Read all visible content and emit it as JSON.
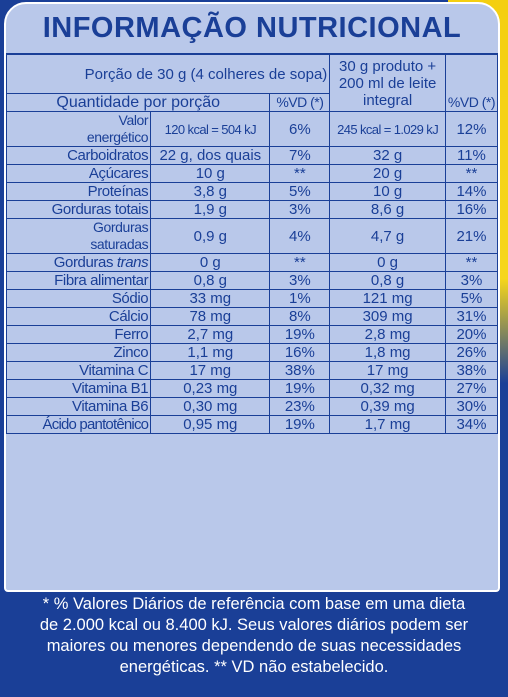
{
  "title": "INFORMAÇÃO NUTRICIONAL",
  "header": {
    "portion": "Porção de 30 g (4 colheres de sopa)",
    "product_line1": "30 g produto +",
    "product_line2": "200 ml de leite",
    "product_line3": "integral",
    "qty_label": "Quantidade por porção",
    "vd1": "%VD (*)",
    "vd2": "%VD (*)"
  },
  "rows": [
    {
      "name_l1": "Valor",
      "name_l2": "energético",
      "q1": "120 kcal = 504 kJ",
      "v1": "6%",
      "q2": "245 kcal = 1.029 kJ",
      "v2": "12%"
    },
    {
      "name": "Carboidratos",
      "q1": "22 g, dos quais",
      "v1": "7%",
      "q2": "32 g",
      "v2": "11%"
    },
    {
      "name": "Açúcares",
      "q1": "10 g",
      "v1": "**",
      "q2": "20 g",
      "v2": "**"
    },
    {
      "name": "Proteínas",
      "q1": "3,8 g",
      "v1": "5%",
      "q2": "10 g",
      "v2": "14%"
    },
    {
      "name": "Gorduras totais",
      "q1": "1,9 g",
      "v1": "3%",
      "q2": "8,6 g",
      "v2": "16%"
    },
    {
      "name_l1": "Gorduras",
      "name_l2": "saturadas",
      "q1": "0,9 g",
      "v1": "4%",
      "q2": "4,7 g",
      "v2": "21%"
    },
    {
      "name_a": "Gorduras ",
      "name_b": "trans",
      "q1": "0 g",
      "v1": "**",
      "q2": "0 g",
      "v2": "**"
    },
    {
      "name": "Fibra alimentar",
      "q1": "0,8 g",
      "v1": "3%",
      "q2": "0,8 g",
      "v2": "3%"
    },
    {
      "name": "Sódio",
      "q1": "33 mg",
      "v1": "1%",
      "q2": "121 mg",
      "v2": "5%"
    },
    {
      "name": "Cálcio",
      "q1": "78 mg",
      "v1": "8%",
      "q2": "309 mg",
      "v2": "31%"
    },
    {
      "name": "Ferro",
      "q1": "2,7 mg",
      "v1": "19%",
      "q2": "2,8 mg",
      "v2": "20%"
    },
    {
      "name": "Zinco",
      "q1": "1,1 mg",
      "v1": "16%",
      "q2": "1,8 mg",
      "v2": "26%"
    },
    {
      "name": "Vitamina C",
      "q1": "17 mg",
      "v1": "38%",
      "q2": "17 mg",
      "v2": "38%"
    },
    {
      "name": "Vitamina B1",
      "q1": "0,23 mg",
      "v1": "19%",
      "q2": "0,32 mg",
      "v2": "27%"
    },
    {
      "name": "Vitamina B6",
      "q1": "0,30 mg",
      "v1": "23%",
      "q2": "0,39 mg",
      "v2": "30%"
    },
    {
      "name": "Ácido pantotênico",
      "q1": "0,95 mg",
      "v1": "19%",
      "q2": "1,7 mg",
      "v2": "34%"
    }
  ],
  "footer": {
    "line1": "* % Valores Diários de referência com base em uma dieta",
    "line2": "de 2.000 kcal ou 8.400 kJ. Seus valores diários podem ser",
    "line3": "maiores ou menores dependendo de suas necessidades",
    "line4": "energéticas. ** VD não estabelecido."
  },
  "colors": {
    "navy": "#1a3f97",
    "panel": "#b9c8ea",
    "yellow": "#f4cf10"
  }
}
